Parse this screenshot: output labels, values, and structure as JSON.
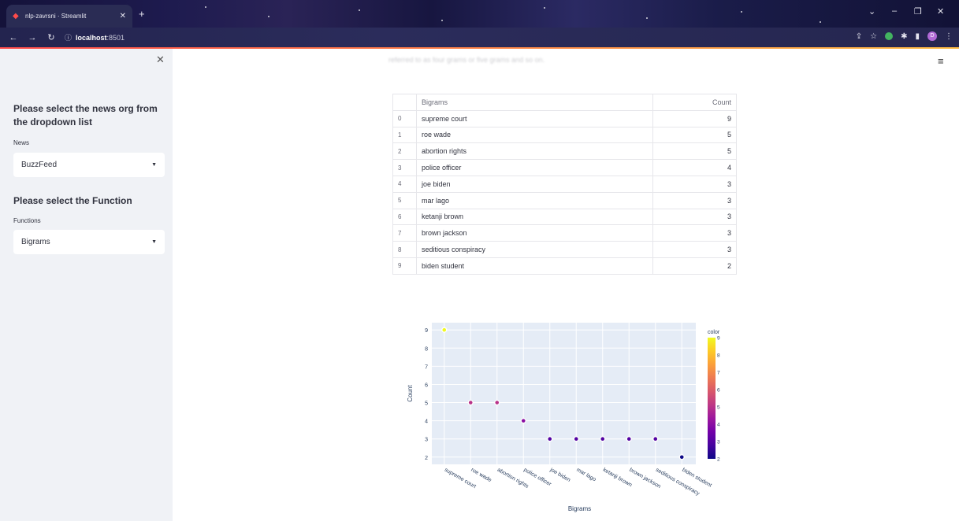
{
  "browser": {
    "tab_title": "nlp-zavrsni · Streamlit",
    "url_host": "localhost",
    "url_port": ":8501",
    "avatar_letter": "D"
  },
  "sidebar": {
    "heading_news": "Please select the news org from the dropdown list",
    "label_news": "News",
    "news_value": "BuzzFeed",
    "heading_function": "Please select the Function",
    "label_functions": "Functions",
    "function_value": "Bigrams"
  },
  "main": {
    "faded_text": "referred to as four grams or five grams and so on.",
    "table": {
      "headers": [
        "",
        "Bigrams",
        "Count"
      ],
      "rows": [
        [
          "0",
          "supreme court",
          "9"
        ],
        [
          "1",
          "roe wade",
          "5"
        ],
        [
          "2",
          "abortion rights",
          "5"
        ],
        [
          "3",
          "police officer",
          "4"
        ],
        [
          "4",
          "joe biden",
          "3"
        ],
        [
          "5",
          "mar lago",
          "3"
        ],
        [
          "6",
          "ketanji brown",
          "3"
        ],
        [
          "7",
          "brown jackson",
          "3"
        ],
        [
          "8",
          "seditious conspiracy",
          "3"
        ],
        [
          "9",
          "biden student",
          "2"
        ]
      ]
    }
  },
  "chart_data": {
    "type": "scatter",
    "categories": [
      "supreme court",
      "roe wade",
      "abortion rights",
      "police officer",
      "joe biden",
      "mar lago",
      "ketanji brown",
      "brown jackson",
      "seditious conspiracy",
      "biden student"
    ],
    "values": [
      9,
      5,
      5,
      4,
      3,
      3,
      3,
      3,
      3,
      2
    ],
    "xlabel": "Bigrams",
    "ylabel": "Count",
    "yticks": [
      "2",
      "3",
      "4",
      "5",
      "6",
      "7",
      "8",
      "9"
    ],
    "ylim": [
      1.6,
      9.4
    ],
    "colorbar": {
      "title": "color",
      "ticks": [
        "2",
        "3",
        "4",
        "5",
        "6",
        "7",
        "8",
        "9"
      ],
      "colorscale": [
        "#0d0887",
        "#46039f",
        "#7201a8",
        "#9c179e",
        "#bd3786",
        "#d8576b",
        "#ed7953",
        "#fb9f3a",
        "#fdca26",
        "#f0f921"
      ]
    },
    "grid": true,
    "background": "#e5ecf6",
    "legend_placement": "right"
  }
}
